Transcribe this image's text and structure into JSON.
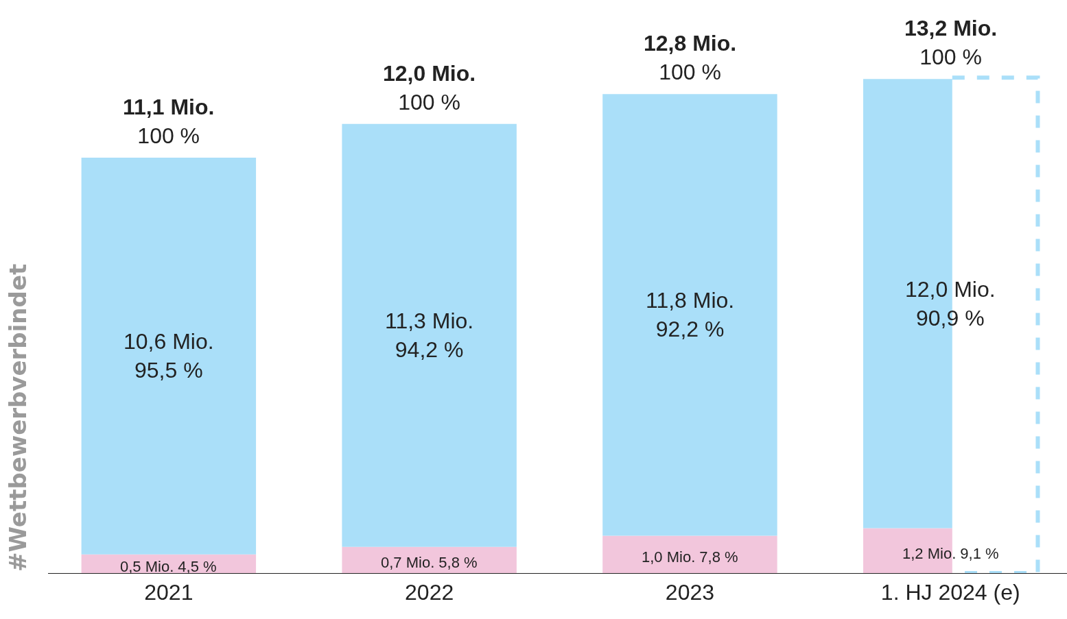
{
  "chart_data": {
    "type": "bar",
    "stacked": true,
    "categories": [
      "2021",
      "2022",
      "2023",
      "1. HJ 2024 (e)"
    ],
    "series": [
      {
        "color": "#f2c6dc",
        "values": [
          0.5,
          0.7,
          1.0,
          1.2
        ],
        "value_labels": [
          "0,5 Mio. 4,5 %",
          "0,7 Mio. 5,8 %",
          "1,0 Mio. 7,8 %",
          "1,2 Mio. 9,1 %"
        ]
      },
      {
        "color": "#aadff9",
        "values": [
          10.6,
          11.3,
          11.8,
          12.0
        ],
        "value_labels": [
          "10,6 Mio.\n95,5 %",
          "11,3 Mio.\n94,2 %",
          "11,8 Mio.\n92,2 %",
          "12,0 Mio.\n90,9 %"
        ]
      }
    ],
    "totals": [
      "11,1 Mio.\n100 %",
      "12,0 Mio.\n100 %",
      "12,8 Mio.\n100 %",
      "13,2 Mio.\n100 %"
    ],
    "annotations": [
      "#Wettbewerbverbindet"
    ],
    "tick_labels": "x"
  }
}
